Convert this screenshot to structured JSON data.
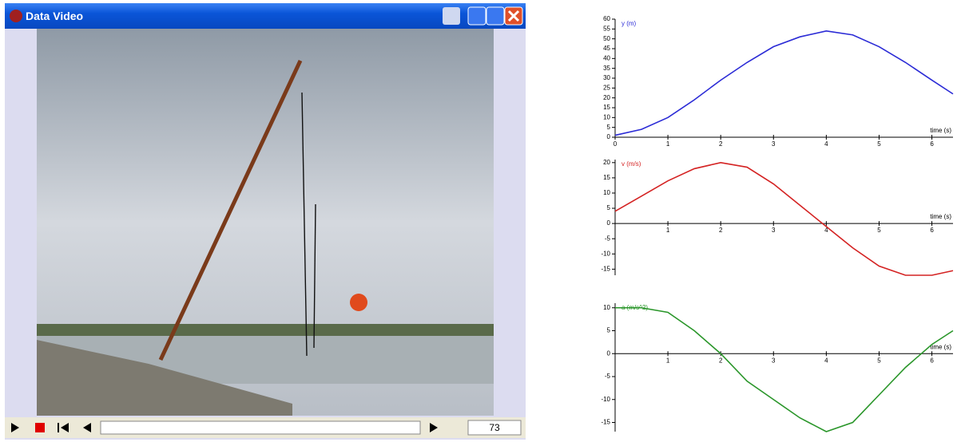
{
  "window": {
    "title": "Data Video",
    "frame": "73"
  },
  "chart_data": [
    {
      "type": "line",
      "y_label": "y (m)",
      "x_label": "time (s)",
      "x": [
        0,
        0.5,
        1,
        1.5,
        2,
        2.5,
        3,
        3.5,
        4,
        4.5,
        5,
        5.5,
        6,
        6.4
      ],
      "series": [
        {
          "name": "y (m)",
          "color": "#2b2bd6",
          "values": [
            1,
            4,
            10,
            19,
            29,
            38,
            46,
            51,
            54,
            52,
            46,
            38,
            29,
            22
          ]
        }
      ],
      "xlim": [
        0,
        6.4
      ],
      "xticks": [
        0,
        1,
        2,
        3,
        4,
        5,
        6
      ],
      "ylim": [
        0,
        60
      ],
      "yticks": [
        0,
        5,
        10,
        15,
        20,
        25,
        30,
        35,
        40,
        45,
        50,
        55,
        60
      ]
    },
    {
      "type": "line",
      "y_label": "v (m/s)",
      "x_label": "time (s)",
      "x": [
        0,
        0.5,
        1,
        1.5,
        2,
        2.5,
        3,
        3.5,
        4,
        4.5,
        5,
        5.5,
        6,
        6.4
      ],
      "series": [
        {
          "name": "v (m/s)",
          "color": "#d42222",
          "values": [
            4,
            9,
            14,
            18,
            20,
            18.5,
            13,
            6,
            -1,
            -8,
            -14,
            -17,
            -17,
            -15.5
          ]
        }
      ],
      "xlim": [
        0,
        6.4
      ],
      "xticks": [
        1,
        2,
        3,
        4,
        5,
        6
      ],
      "ylim": [
        -17,
        21
      ],
      "yticks": [
        -15,
        -10,
        -5,
        0,
        5,
        10,
        15,
        20
      ]
    },
    {
      "type": "line",
      "y_label": "a (m/s^2)",
      "x_label": "time (s)",
      "x": [
        0,
        0.5,
        1,
        1.5,
        2,
        2.5,
        3,
        3.5,
        4,
        4.5,
        5,
        5.5,
        6,
        6.4
      ],
      "series": [
        {
          "name": "a (m/s^2)",
          "color": "#2a962a",
          "values": [
            10,
            10,
            9,
            5,
            0,
            -6,
            -10,
            -14,
            -17,
            -15,
            -9,
            -3,
            2,
            5
          ]
        }
      ],
      "xlim": [
        0,
        6.4
      ],
      "xticks": [
        1,
        2,
        3,
        4,
        5,
        6
      ],
      "ylim": [
        -17,
        11
      ],
      "yticks": [
        -15,
        -10,
        -5,
        0,
        5,
        10
      ]
    }
  ]
}
